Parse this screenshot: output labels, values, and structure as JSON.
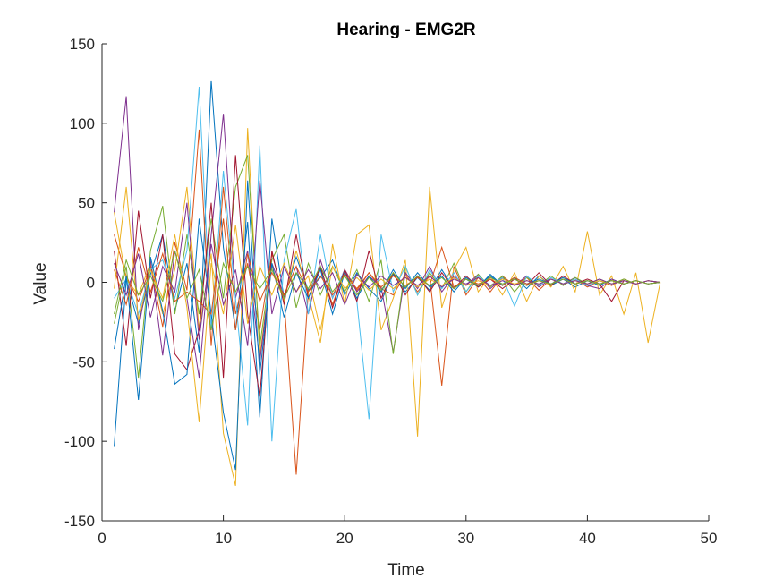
{
  "chart_data": {
    "type": "line",
    "title": "Hearing - EMG2R",
    "xlabel": "Time",
    "ylabel": "Value",
    "xlim": [
      0,
      50
    ],
    "ylim": [
      -150,
      150
    ],
    "xticks": [
      0,
      10,
      20,
      30,
      40,
      50
    ],
    "yticks": [
      -150,
      -100,
      -50,
      0,
      50,
      100,
      150
    ],
    "grid": false,
    "legend": "none",
    "colors": [
      "#0072BD",
      "#D95319",
      "#EDB120",
      "#7E2F8E",
      "#77AC30",
      "#4DBEEE",
      "#A2142F"
    ],
    "x": [
      1,
      2,
      3,
      4,
      5,
      6,
      7,
      8,
      9,
      10,
      11,
      12,
      13,
      14,
      15,
      16,
      17,
      18,
      19,
      20,
      21,
      22,
      23,
      24,
      25,
      26,
      27,
      28,
      29,
      30,
      31,
      32,
      33,
      34,
      35,
      36,
      37,
      38,
      39,
      40,
      41,
      42,
      43,
      44,
      45,
      46
    ],
    "series": [
      {
        "values": [
          -103,
          2,
          -26,
          5,
          30,
          -18,
          12,
          -44,
          127,
          22,
          -30,
          38,
          -85,
          40,
          -10,
          16,
          -5,
          3,
          14,
          -8,
          6,
          -4,
          -12,
          5,
          -6,
          3,
          -5,
          8,
          -4,
          2,
          -3,
          5,
          -2,
          3,
          -4,
          4,
          -2,
          2,
          -3,
          1,
          -2,
          2,
          -1,
          1,
          -1,
          0
        ]
      },
      {
        "values": [
          30,
          4,
          -12,
          10,
          -28,
          25,
          -5,
          96,
          -40,
          60,
          -20,
          12,
          -30,
          18,
          -10,
          -121,
          -6,
          9,
          -14,
          8,
          -5,
          6,
          -4,
          -8,
          5,
          -6,
          4,
          -65,
          10,
          -8,
          3,
          -6,
          4,
          -2,
          3,
          -5,
          2,
          -1,
          2,
          -3,
          1,
          -2,
          2,
          -1,
          1,
          0
        ]
      },
      {
        "values": [
          44,
          2,
          -8,
          12,
          -20,
          8,
          60,
          -30,
          18,
          -95,
          -128,
          97,
          -46,
          10,
          -12,
          20,
          -8,
          -38,
          24,
          -14,
          30,
          36,
          -30,
          -10,
          14,
          -97,
          60,
          -16,
          8,
          22,
          -6,
          4,
          -8,
          6,
          -12,
          4,
          -3,
          10,
          -6,
          32,
          -8,
          4,
          -20,
          6,
          -38,
          0
        ]
      },
      {
        "values": [
          44,
          117,
          -30,
          14,
          -46,
          20,
          -10,
          -60,
          30,
          106,
          -10,
          20,
          -50,
          12,
          -8,
          10,
          -20,
          14,
          -10,
          8,
          -6,
          4,
          -3,
          -44,
          6,
          -4,
          10,
          -6,
          4,
          -2,
          5,
          -4,
          3,
          -2,
          4,
          -3,
          2,
          -1,
          3,
          -2,
          -4,
          2,
          -1,
          1,
          -1,
          0
        ]
      },
      {
        "values": [
          -26,
          10,
          -60,
          20,
          48,
          -20,
          30,
          -20,
          40,
          -10,
          60,
          80,
          -40,
          14,
          30,
          -16,
          12,
          -8,
          10,
          -6,
          8,
          -12,
          14,
          -45,
          10,
          -8,
          6,
          -4,
          12,
          -6,
          5,
          -3,
          4,
          -6,
          3,
          -2,
          4,
          -2,
          3,
          -1,
          2,
          -1,
          2,
          -1,
          1,
          0
        ]
      },
      {
        "values": [
          -10,
          2,
          -20,
          8,
          14,
          -10,
          20,
          123,
          -30,
          70,
          -10,
          -90,
          86,
          -100,
          14,
          46,
          -20,
          30,
          -10,
          8,
          -12,
          -86,
          30,
          -6,
          10,
          -8,
          8,
          -4,
          6,
          -6,
          4,
          -2,
          3,
          -15,
          4,
          -2,
          3,
          -1,
          2,
          -2,
          1,
          -1,
          1,
          -1,
          1,
          0
        ]
      },
      {
        "values": [
          20,
          -40,
          45,
          -10,
          30,
          -45,
          -55,
          -30,
          50,
          -60,
          80,
          -20,
          -72,
          20,
          -14,
          30,
          -10,
          10,
          -16,
          8,
          -12,
          20,
          -10,
          6,
          -8,
          4,
          -6,
          6,
          -4,
          4,
          -3,
          2,
          -4,
          2,
          -2,
          6,
          -2,
          4,
          -1,
          2,
          -1,
          -12,
          1,
          -1,
          1,
          0
        ]
      },
      {
        "values": [
          -42,
          4,
          -74,
          16,
          -18,
          -64,
          -58,
          40,
          -20,
          -82,
          -118,
          64,
          -58,
          12,
          -22,
          6,
          -10,
          8,
          -20,
          6,
          -10,
          4,
          -6,
          8,
          -4,
          6,
          -3,
          4,
          -6,
          3,
          -2,
          4,
          -2,
          3,
          -1,
          2,
          -1,
          3,
          -1,
          1,
          -1,
          1,
          -1,
          1,
          -1,
          0
        ]
      },
      {
        "values": [
          8,
          -14,
          22,
          -6,
          18,
          -12,
          -6,
          -12,
          -20,
          40,
          -30,
          18,
          -12,
          6,
          -8,
          10,
          -6,
          4,
          -8,
          5,
          -4,
          6,
          -3,
          4,
          -2,
          3,
          -2,
          22,
          -3,
          2,
          -1,
          2,
          -2,
          3,
          -1,
          1,
          -1,
          2,
          -1,
          1,
          -1,
          1,
          -1,
          1,
          -1,
          0
        ]
      },
      {
        "values": [
          -4,
          60,
          -24,
          8,
          -10,
          30,
          -16,
          -88,
          12,
          -20,
          36,
          -26,
          10,
          -8,
          12,
          -6,
          4,
          -30,
          10,
          -4,
          3,
          -5,
          2,
          -4,
          3,
          -3,
          2,
          -2,
          3,
          -2,
          1,
          -2,
          2,
          -1,
          1,
          -1,
          2,
          -1,
          1,
          -1,
          1,
          -1,
          1,
          -1,
          1,
          0
        ]
      },
      {
        "values": [
          12,
          -8,
          18,
          -22,
          10,
          -6,
          50,
          -36,
          24,
          -14,
          8,
          -40,
          64,
          -20,
          10,
          -6,
          8,
          -4,
          6,
          -14,
          5,
          -3,
          4,
          -2,
          3,
          -2,
          4,
          -3,
          2,
          -1,
          3,
          -2,
          1,
          -2,
          1,
          -1,
          2,
          -1,
          1,
          -1,
          2,
          -1,
          1,
          -1,
          1,
          0
        ]
      },
      {
        "values": [
          -20,
          14,
          -8,
          4,
          -12,
          20,
          -10,
          8,
          -30,
          12,
          -6,
          10,
          -4,
          8,
          -10,
          6,
          -4,
          10,
          -6,
          4,
          -8,
          3,
          -5,
          6,
          -3,
          4,
          -2,
          3,
          -4,
          2,
          -2,
          3,
          -1,
          2,
          -2,
          1,
          -1,
          2,
          -1,
          1,
          -1,
          1,
          -1,
          1,
          -1,
          0
        ]
      }
    ]
  }
}
